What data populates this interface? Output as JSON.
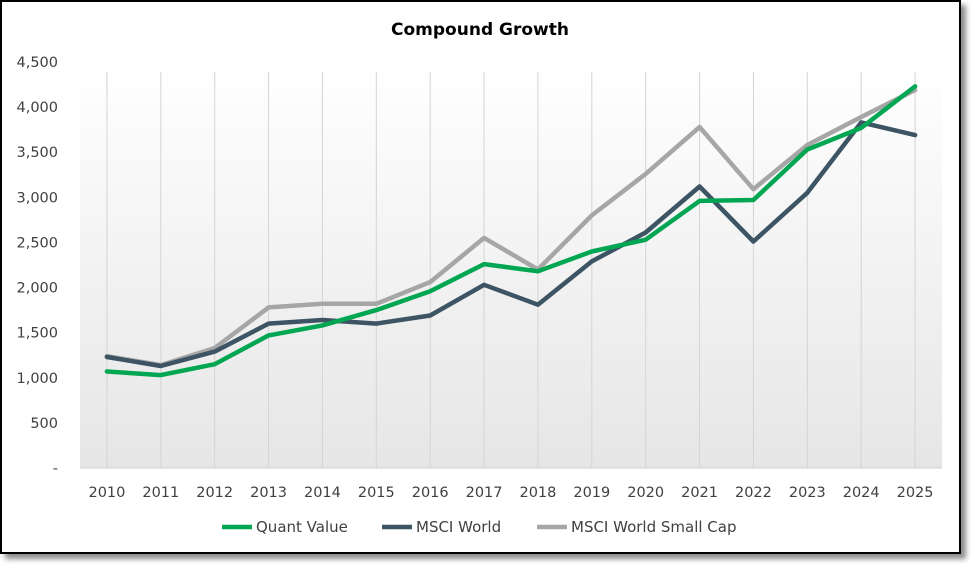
{
  "chart_data": {
    "type": "line",
    "title": "Compound Growth",
    "xlabel": "",
    "ylabel": "",
    "x": [
      "2010",
      "2011",
      "2012",
      "2013",
      "2014",
      "2015",
      "2016",
      "2017",
      "2018",
      "2019",
      "2020",
      "2021",
      "2022",
      "2023",
      "2024",
      "2025"
    ],
    "ylim": [
      0,
      4500
    ],
    "y_ticks": [
      {
        "value": 0,
        "label": "-"
      },
      {
        "value": 500,
        "label": "500"
      },
      {
        "value": 1000,
        "label": "1,000"
      },
      {
        "value": 1500,
        "label": "1,500"
      },
      {
        "value": 2000,
        "label": "2,000"
      },
      {
        "value": 2500,
        "label": "2,500"
      },
      {
        "value": 3000,
        "label": "3,000"
      },
      {
        "value": 3500,
        "label": "3,500"
      },
      {
        "value": 4000,
        "label": "4,000"
      },
      {
        "value": 4500,
        "label": "4,500"
      }
    ],
    "grid": "vertical",
    "legend": "bottom",
    "series": [
      {
        "name": "MSCI World Small Cap",
        "color": "#a6a6a6",
        "values": [
          1240,
          1140,
          1330,
          1780,
          1820,
          1820,
          2060,
          2550,
          2200,
          2800,
          3260,
          3780,
          3090,
          3580,
          3890,
          4190
        ]
      },
      {
        "name": "MSCI World",
        "color": "#3d5464",
        "values": [
          1230,
          1130,
          1290,
          1600,
          1640,
          1600,
          1690,
          2030,
          1810,
          2290,
          2610,
          3120,
          2510,
          3050,
          3830,
          3690
        ]
      },
      {
        "name": "Quant Value",
        "color": "#00a651",
        "values": [
          1070,
          1030,
          1150,
          1470,
          1580,
          1750,
          1960,
          2260,
          2180,
          2400,
          2530,
          2960,
          2970,
          3530,
          3770,
          4230
        ]
      }
    ],
    "legend_order": [
      "Quant Value",
      "MSCI World",
      "MSCI World Small Cap"
    ]
  }
}
